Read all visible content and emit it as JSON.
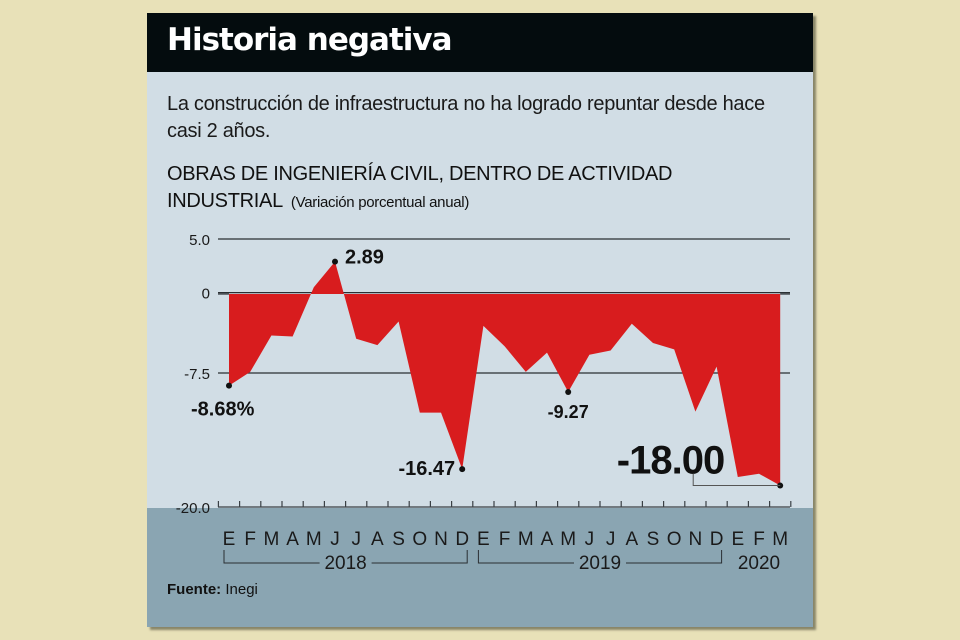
{
  "header": {
    "title": "Historia negativa",
    "subtitle": "La construcción de infraestructura no ha logrado repuntar desde hace casi 2 años."
  },
  "source": {
    "label": "Fuente:",
    "value": "Inegi"
  },
  "colors": {
    "area_fill": "#d81c1e",
    "background": "#d1dde5",
    "title_bar": "#040c0e",
    "bottom_band": "#8aa5b2",
    "page_background": "#e8e1b8"
  },
  "chart_data": {
    "type": "area",
    "title": "OBRAS DE INGENIERÍA CIVIL, DENTRO DE ACTIVIDAD INDUSTRIAL",
    "title_unit": "(Variación porcentual anual)",
    "xlabel": "",
    "ylabel": "",
    "ylim": [
      -20.0,
      5.0
    ],
    "yticks": [
      5.0,
      0,
      -7.5,
      -20.0
    ],
    "ytick_labels": [
      "5.0",
      "0",
      "-7.5",
      "-20.0"
    ],
    "grid": true,
    "x": [
      "E",
      "F",
      "M",
      "A",
      "M",
      "J",
      "J",
      "A",
      "S",
      "O",
      "N",
      "D",
      "E",
      "F",
      "M",
      "A",
      "M",
      "J",
      "J",
      "A",
      "S",
      "O",
      "N",
      "D",
      "E",
      "F",
      "M"
    ],
    "year_groups": [
      {
        "label": "2018",
        "start": 0,
        "end": 11
      },
      {
        "label": "2019",
        "start": 12,
        "end": 23
      },
      {
        "label": "2020",
        "start": 24,
        "end": 26
      }
    ],
    "series": [
      {
        "name": "Obras de ingeniería civil",
        "values": [
          -8.68,
          -7.4,
          -4.0,
          -4.1,
          0.5,
          2.89,
          -4.3,
          -4.9,
          -2.7,
          -11.2,
          -11.2,
          -16.47,
          -3.1,
          -5.0,
          -7.4,
          -5.6,
          -9.27,
          -5.8,
          -5.4,
          -2.9,
          -4.7,
          -5.3,
          -11.1,
          -6.9,
          -17.2,
          -16.9,
          -18.0
        ]
      }
    ],
    "annotations": [
      {
        "index": 0,
        "text": "-8.68%"
      },
      {
        "index": 5,
        "text": "2.89"
      },
      {
        "index": 11,
        "text": "-16.47"
      },
      {
        "index": 16,
        "text": "-9.27"
      },
      {
        "index": 26,
        "text": "-18.00",
        "emphasis": true
      }
    ]
  }
}
